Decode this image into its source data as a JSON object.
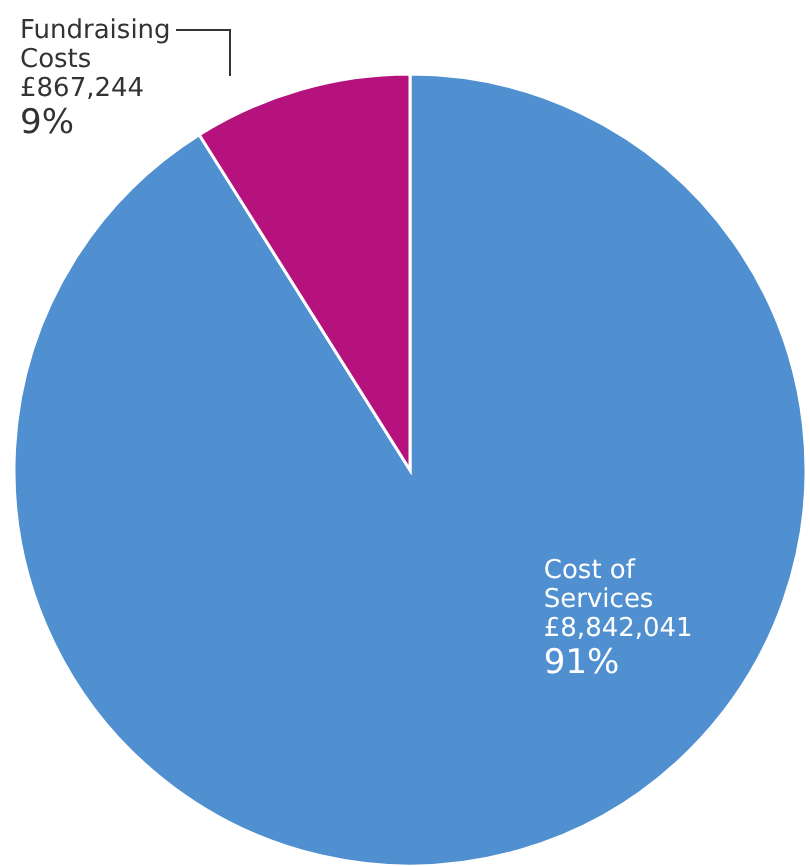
{
  "chart_data": {
    "type": "pie",
    "categories": [
      "Cost of Services",
      "Fundraising Costs"
    ],
    "values": [
      8842041,
      867244
    ],
    "colors": [
      "#5090d0",
      "#b5127e"
    ],
    "value_labels": [
      "£8,842,041\n91%",
      "£867,244\n9%"
    ]
  }
}
